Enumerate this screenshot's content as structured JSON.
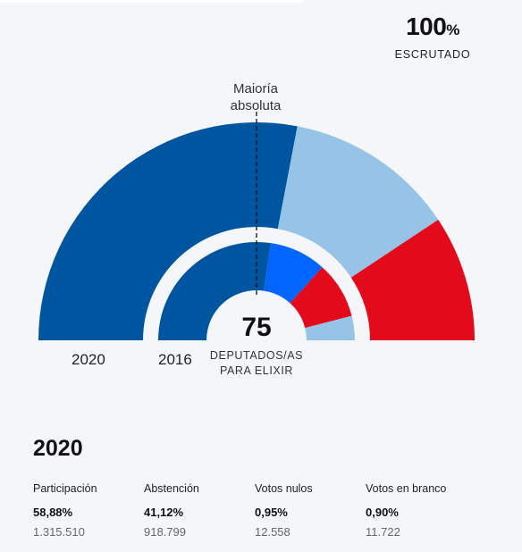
{
  "scrutiny": {
    "value": "100",
    "sign": "%",
    "label": "ESCRUTADO"
  },
  "majority_label": [
    "Maioría",
    "absoluta"
  ],
  "center": {
    "seats": "75",
    "label_line1": "DEPUTADOS/AS",
    "label_line2": "PARA ELIXIR"
  },
  "chart_data": {
    "type": "semicircle-hemicycle",
    "total_seats": 75,
    "majority_seats": 38,
    "rings": [
      {
        "year": "2020",
        "segments": [
          {
            "seats": 42,
            "color": "#0055a0"
          },
          {
            "seats": 19,
            "color": "#97c3e6"
          },
          {
            "seats": 14,
            "color": "#e30a1c"
          }
        ]
      },
      {
        "year": "2016",
        "segments": [
          {
            "seats": 41,
            "color": "#0055a0"
          },
          {
            "seats": 14,
            "color": "#0066ff"
          },
          {
            "seats": 14,
            "color": "#e30a1c"
          },
          {
            "seats": 6,
            "color": "#97c3e6"
          }
        ]
      }
    ]
  },
  "stats": {
    "title": "2020",
    "items": [
      {
        "name": "Participación",
        "pct": "58,88%",
        "count": "1.315.510"
      },
      {
        "name": "Abstención",
        "pct": "41,12%",
        "count": "918.799"
      },
      {
        "name": "Votos nulos",
        "pct": "0,95%",
        "count": "12.558"
      },
      {
        "name": "Votos en branco",
        "pct": "0,90%",
        "count": "11.722"
      }
    ]
  }
}
